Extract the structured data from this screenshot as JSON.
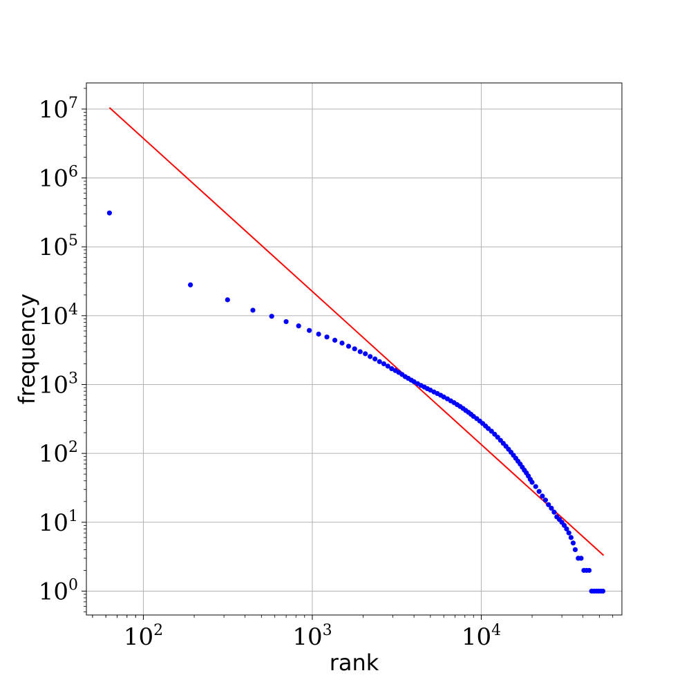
{
  "chart_data": {
    "type": "scatter",
    "xlabel": "rank",
    "ylabel": "frequency",
    "xscale": "log",
    "yscale": "log",
    "xlim": [
      46,
      68000
    ],
    "ylim": [
      0.45,
      24000000
    ],
    "grid": true,
    "x_ticks": [
      {
        "base": "10",
        "exp": "2",
        "value": 100
      },
      {
        "base": "10",
        "exp": "3",
        "value": 1000
      },
      {
        "base": "10",
        "exp": "4",
        "value": 10000
      }
    ],
    "y_ticks": [
      {
        "base": "10",
        "exp": "0",
        "value": 1
      },
      {
        "base": "10",
        "exp": "1",
        "value": 10
      },
      {
        "base": "10",
        "exp": "2",
        "value": 100
      },
      {
        "base": "10",
        "exp": "3",
        "value": 1000
      },
      {
        "base": "10",
        "exp": "4",
        "value": 10000
      },
      {
        "base": "10",
        "exp": "5",
        "value": 100000
      },
      {
        "base": "10",
        "exp": "6",
        "value": 1000000
      },
      {
        "base": "10",
        "exp": "7",
        "value": 10000000
      }
    ],
    "colors": {
      "points": "#0000ff",
      "fit_line": "#ff0000"
    },
    "fit_line": {
      "x": [
        63,
        53000
      ],
      "y": [
        10500000,
        3.3
      ]
    },
    "series": [
      {
        "points": [
          [
            63,
            310000
          ],
          [
            190,
            28000
          ],
          [
            315,
            17000
          ],
          [
            445,
            12000
          ],
          [
            575,
            9800
          ],
          [
            700,
            8200
          ],
          [
            830,
            7100
          ],
          [
            960,
            6100
          ],
          [
            1090,
            5400
          ],
          [
            1220,
            4900
          ],
          [
            1360,
            4400
          ],
          [
            1500,
            4000
          ],
          [
            1640,
            3600
          ],
          [
            1780,
            3300
          ],
          [
            1920,
            3000
          ],
          [
            2060,
            2800
          ],
          [
            2200,
            2550
          ],
          [
            2350,
            2350
          ],
          [
            2500,
            2150
          ],
          [
            2650,
            2000
          ],
          [
            2800,
            1850
          ],
          [
            2950,
            1700
          ],
          [
            3100,
            1600
          ],
          [
            3250,
            1500
          ],
          [
            3400,
            1400
          ],
          [
            3550,
            1300
          ],
          [
            3700,
            1230
          ],
          [
            3850,
            1160
          ],
          [
            4000,
            1100
          ],
          [
            4200,
            1030
          ],
          [
            4400,
            970
          ],
          [
            4600,
            920
          ],
          [
            4800,
            870
          ],
          [
            5000,
            830
          ],
          [
            5250,
            780
          ],
          [
            5500,
            740
          ],
          [
            5750,
            700
          ],
          [
            6000,
            660
          ],
          [
            6300,
            620
          ],
          [
            6600,
            580
          ],
          [
            6900,
            545
          ],
          [
            7200,
            510
          ],
          [
            7500,
            480
          ],
          [
            7800,
            450
          ],
          [
            8100,
            420
          ],
          [
            8400,
            395
          ],
          [
            8700,
            370
          ],
          [
            9000,
            345
          ],
          [
            9400,
            320
          ],
          [
            9800,
            295
          ],
          [
            10200,
            272
          ],
          [
            10600,
            250
          ],
          [
            11000,
            230
          ],
          [
            11500,
            210
          ],
          [
            12000,
            190
          ],
          [
            12500,
            172
          ],
          [
            13000,
            155
          ],
          [
            13500,
            140
          ],
          [
            14000,
            127
          ],
          [
            14500,
            115
          ],
          [
            15000,
            104
          ],
          [
            15500,
            94
          ],
          [
            16000,
            85
          ],
          [
            16500,
            77
          ],
          [
            17000,
            70
          ],
          [
            17500,
            63
          ],
          [
            18000,
            57
          ],
          [
            18500,
            52
          ],
          [
            19000,
            47
          ],
          [
            19500,
            42
          ],
          [
            20000,
            38
          ],
          [
            21000,
            33
          ],
          [
            22000,
            28
          ],
          [
            23000,
            24
          ],
          [
            24000,
            21
          ],
          [
            25000,
            18
          ],
          [
            26000,
            16
          ],
          [
            27000,
            14
          ],
          [
            28000,
            12
          ],
          [
            29000,
            11
          ],
          [
            30000,
            10
          ],
          [
            31000,
            9
          ],
          [
            32000,
            8
          ],
          [
            33000,
            7
          ],
          [
            34000,
            6
          ],
          [
            35000,
            5
          ],
          [
            36000,
            4
          ],
          [
            37500,
            3
          ],
          [
            39000,
            3
          ],
          [
            40500,
            2
          ],
          [
            42000,
            2
          ],
          [
            43500,
            2
          ],
          [
            45000,
            1
          ],
          [
            46500,
            1
          ],
          [
            48000,
            1
          ],
          [
            49500,
            1
          ],
          [
            51000,
            1
          ],
          [
            52500,
            1
          ]
        ]
      }
    ]
  }
}
